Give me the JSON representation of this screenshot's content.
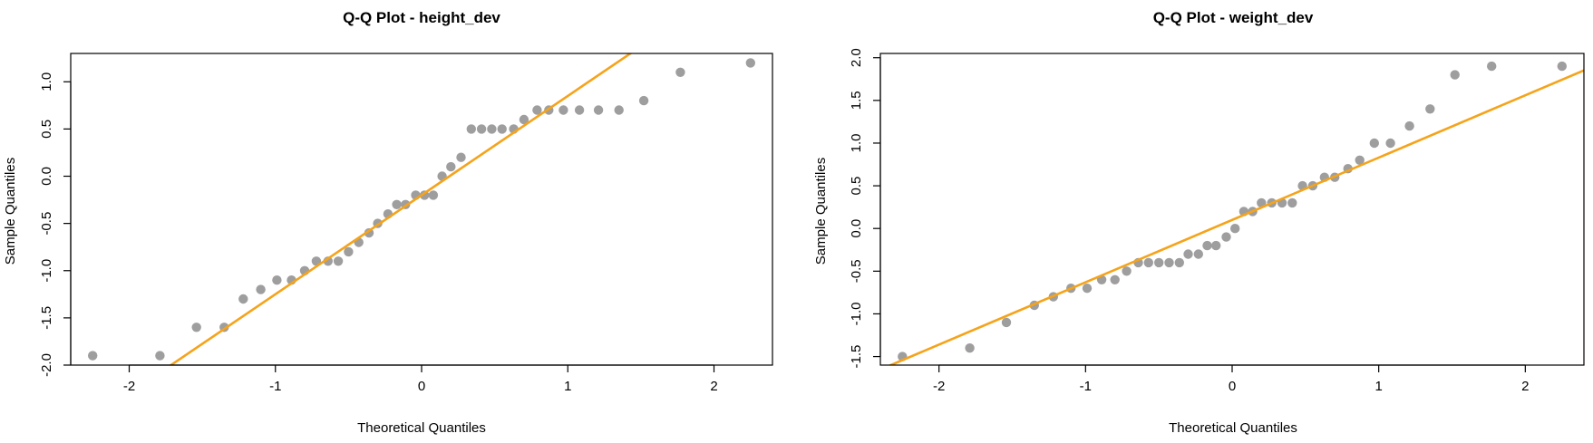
{
  "chart_data": [
    {
      "type": "scatter",
      "title": "Q-Q Plot - height_dev",
      "xlabel": "Theoretical Quantiles",
      "ylabel": "Sample Quantiles",
      "xlim": [
        -2.4,
        2.4
      ],
      "ylim": [
        -2.0,
        1.3
      ],
      "xticks": [
        -2,
        -1,
        0,
        1,
        2
      ],
      "xtick_labels": [
        "-2",
        "-1",
        "0",
        "1",
        "2"
      ],
      "yticks": [
        -2.0,
        -1.5,
        -1.0,
        -0.5,
        0.0,
        0.5,
        1.0
      ],
      "ytick_labels": [
        "-2.0",
        "-1.5",
        "-1.0",
        "-0.5",
        "0.0",
        "0.5",
        "1.0"
      ],
      "grid": false,
      "point_color": "#9e9e9e",
      "line_color": "#f5a31a",
      "points": [
        {
          "x": -2.25,
          "y": -1.9
        },
        {
          "x": -1.79,
          "y": -1.9
        },
        {
          "x": -1.54,
          "y": -1.6
        },
        {
          "x": -1.35,
          "y": -1.6
        },
        {
          "x": -1.22,
          "y": -1.3
        },
        {
          "x": -1.1,
          "y": -1.2
        },
        {
          "x": -0.99,
          "y": -1.1
        },
        {
          "x": -0.89,
          "y": -1.1
        },
        {
          "x": -0.8,
          "y": -1.0
        },
        {
          "x": -0.72,
          "y": -0.9
        },
        {
          "x": -0.64,
          "y": -0.9
        },
        {
          "x": -0.57,
          "y": -0.9
        },
        {
          "x": -0.5,
          "y": -0.8
        },
        {
          "x": -0.43,
          "y": -0.7
        },
        {
          "x": -0.36,
          "y": -0.6
        },
        {
          "x": -0.3,
          "y": -0.5
        },
        {
          "x": -0.23,
          "y": -0.4
        },
        {
          "x": -0.17,
          "y": -0.3
        },
        {
          "x": -0.11,
          "y": -0.3
        },
        {
          "x": -0.04,
          "y": -0.2
        },
        {
          "x": 0.02,
          "y": -0.2
        },
        {
          "x": 0.08,
          "y": -0.2
        },
        {
          "x": 0.14,
          "y": 0.0
        },
        {
          "x": 0.2,
          "y": 0.1
        },
        {
          "x": 0.27,
          "y": 0.2
        },
        {
          "x": 0.34,
          "y": 0.5
        },
        {
          "x": 0.41,
          "y": 0.5
        },
        {
          "x": 0.48,
          "y": 0.5
        },
        {
          "x": 0.55,
          "y": 0.5
        },
        {
          "x": 0.63,
          "y": 0.5
        },
        {
          "x": 0.7,
          "y": 0.6
        },
        {
          "x": 0.79,
          "y": 0.7
        },
        {
          "x": 0.87,
          "y": 0.7
        },
        {
          "x": 0.97,
          "y": 0.7
        },
        {
          "x": 1.08,
          "y": 0.7
        },
        {
          "x": 1.21,
          "y": 0.7
        },
        {
          "x": 1.35,
          "y": 0.7
        },
        {
          "x": 1.52,
          "y": 0.8
        },
        {
          "x": 1.77,
          "y": 1.1
        },
        {
          "x": 2.25,
          "y": 1.2
        }
      ],
      "reference_line": {
        "intercept": -0.2,
        "slope": 1.05
      }
    },
    {
      "type": "scatter",
      "title": "Q-Q Plot - weight_dev",
      "xlabel": "Theoretical Quantiles",
      "ylabel": "Sample Quantiles",
      "xlim": [
        -2.4,
        2.4
      ],
      "ylim": [
        -1.6,
        2.05
      ],
      "xticks": [
        -2,
        -1,
        0,
        1,
        2
      ],
      "xtick_labels": [
        "-2",
        "-1",
        "0",
        "1",
        "2"
      ],
      "yticks": [
        -1.5,
        -1.0,
        -0.5,
        0.0,
        0.5,
        1.0,
        1.5,
        2.0
      ],
      "ytick_labels": [
        "-1.5",
        "-1.0",
        "-0.5",
        "0.0",
        "0.5",
        "1.0",
        "1.5",
        "2.0"
      ],
      "grid": false,
      "point_color": "#9e9e9e",
      "line_color": "#f5a31a",
      "points": [
        {
          "x": -2.25,
          "y": -1.5
        },
        {
          "x": -1.79,
          "y": -1.4
        },
        {
          "x": -1.54,
          "y": -1.1
        },
        {
          "x": -1.35,
          "y": -0.9
        },
        {
          "x": -1.22,
          "y": -0.8
        },
        {
          "x": -1.1,
          "y": -0.7
        },
        {
          "x": -0.99,
          "y": -0.7
        },
        {
          "x": -0.89,
          "y": -0.6
        },
        {
          "x": -0.8,
          "y": -0.6
        },
        {
          "x": -0.72,
          "y": -0.5
        },
        {
          "x": -0.64,
          "y": -0.4
        },
        {
          "x": -0.57,
          "y": -0.4
        },
        {
          "x": -0.5,
          "y": -0.4
        },
        {
          "x": -0.43,
          "y": -0.4
        },
        {
          "x": -0.36,
          "y": -0.4
        },
        {
          "x": -0.3,
          "y": -0.3
        },
        {
          "x": -0.23,
          "y": -0.3
        },
        {
          "x": -0.17,
          "y": -0.2
        },
        {
          "x": -0.11,
          "y": -0.2
        },
        {
          "x": -0.04,
          "y": -0.1
        },
        {
          "x": 0.02,
          "y": 0.0
        },
        {
          "x": 0.08,
          "y": 0.2
        },
        {
          "x": 0.14,
          "y": 0.2
        },
        {
          "x": 0.2,
          "y": 0.3
        },
        {
          "x": 0.27,
          "y": 0.3
        },
        {
          "x": 0.34,
          "y": 0.3
        },
        {
          "x": 0.41,
          "y": 0.3
        },
        {
          "x": 0.48,
          "y": 0.5
        },
        {
          "x": 0.55,
          "y": 0.5
        },
        {
          "x": 0.63,
          "y": 0.6
        },
        {
          "x": 0.7,
          "y": 0.6
        },
        {
          "x": 0.79,
          "y": 0.7
        },
        {
          "x": 0.87,
          "y": 0.8
        },
        {
          "x": 0.97,
          "y": 1.0
        },
        {
          "x": 1.08,
          "y": 1.0
        },
        {
          "x": 1.21,
          "y": 1.2
        },
        {
          "x": 1.35,
          "y": 1.4
        },
        {
          "x": 1.52,
          "y": 1.8
        },
        {
          "x": 1.77,
          "y": 1.9
        },
        {
          "x": 2.25,
          "y": 1.9
        }
      ],
      "reference_line": {
        "intercept": 0.1,
        "slope": 0.73
      }
    }
  ]
}
